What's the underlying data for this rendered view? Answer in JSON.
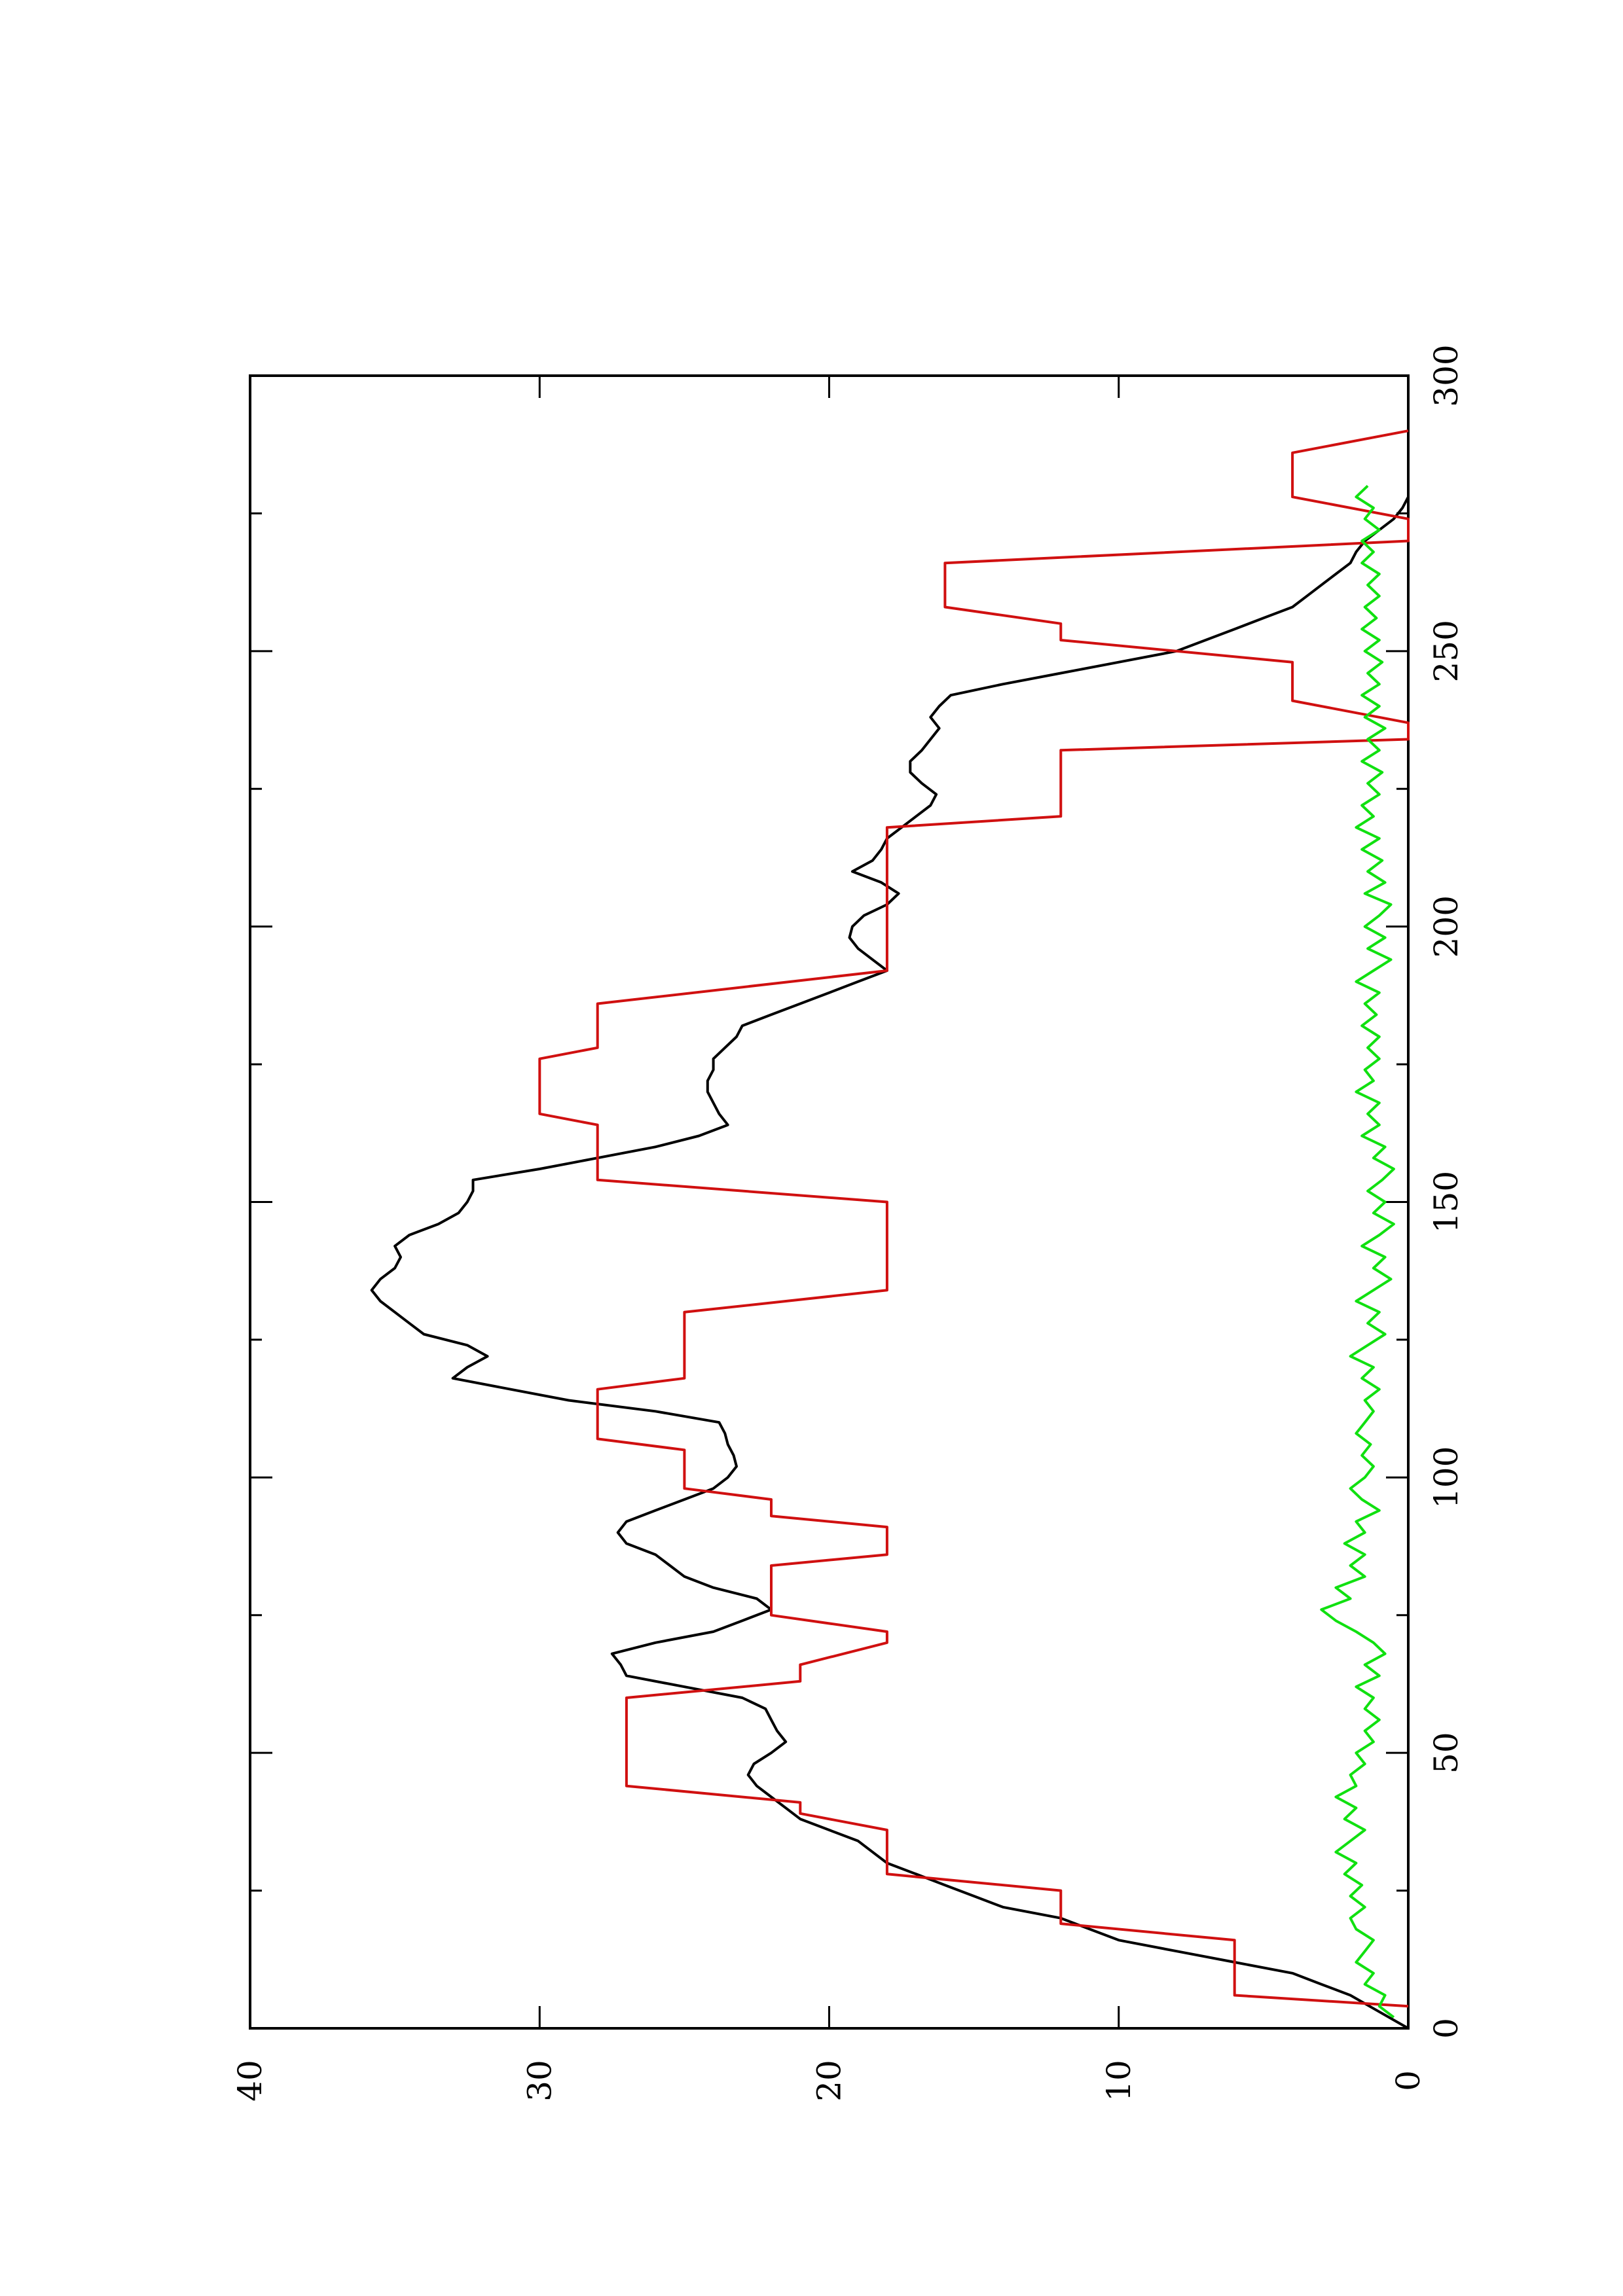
{
  "chart_data": {
    "type": "line",
    "orientation": "rotated-90-ccw",
    "title": "",
    "xlabel": "",
    "ylabel": "",
    "xlim": [
      0,
      300
    ],
    "ylim": [
      0,
      40
    ],
    "x_ticks_major": [
      0,
      50,
      100,
      150,
      200,
      250,
      300
    ],
    "x_ticks_minor": [
      25,
      75,
      125,
      175,
      225,
      275
    ],
    "y_ticks_major": [
      0,
      10,
      20,
      30,
      40
    ],
    "x_tick_labels": [
      "0",
      "50",
      "100",
      "150",
      "200",
      "250",
      "300"
    ],
    "y_tick_labels": [
      "0",
      "10",
      "20",
      "30",
      "40"
    ],
    "grid": false,
    "legend": "none",
    "series": [
      {
        "color": "#000000",
        "points": [
          [
            0,
            0
          ],
          [
            3,
            1
          ],
          [
            6,
            2
          ],
          [
            8,
            3
          ],
          [
            10,
            4
          ],
          [
            12,
            6
          ],
          [
            14,
            8
          ],
          [
            16,
            10
          ],
          [
            18,
            11
          ],
          [
            20,
            12
          ],
          [
            22,
            14
          ],
          [
            24,
            15
          ],
          [
            26,
            16
          ],
          [
            28,
            17
          ],
          [
            30,
            18
          ],
          [
            32,
            18.5
          ],
          [
            34,
            19
          ],
          [
            36,
            20
          ],
          [
            38,
            21
          ],
          [
            40,
            21.5
          ],
          [
            42,
            22
          ],
          [
            44,
            22.5
          ],
          [
            46,
            22.8
          ],
          [
            48,
            22.6
          ],
          [
            50,
            22
          ],
          [
            52,
            21.5
          ],
          [
            54,
            21.8
          ],
          [
            56,
            22
          ],
          [
            58,
            22.2
          ],
          [
            60,
            23
          ],
          [
            62,
            25
          ],
          [
            64,
            27
          ],
          [
            66,
            27.2
          ],
          [
            68,
            27.5
          ],
          [
            70,
            26
          ],
          [
            72,
            24
          ],
          [
            74,
            23
          ],
          [
            76,
            22
          ],
          [
            78,
            22.5
          ],
          [
            80,
            24
          ],
          [
            82,
            25
          ],
          [
            84,
            25.5
          ],
          [
            86,
            26
          ],
          [
            88,
            27
          ],
          [
            90,
            27.3
          ],
          [
            92,
            27
          ],
          [
            94,
            26
          ],
          [
            96,
            25
          ],
          [
            98,
            24
          ],
          [
            100,
            23.5
          ],
          [
            102,
            23.2
          ],
          [
            104,
            23.3
          ],
          [
            106,
            23.5
          ],
          [
            108,
            23.6
          ],
          [
            110,
            23.8
          ],
          [
            112,
            26
          ],
          [
            114,
            29
          ],
          [
            116,
            31
          ],
          [
            118,
            33
          ],
          [
            120,
            32.5
          ],
          [
            122,
            31.8
          ],
          [
            124,
            32.5
          ],
          [
            126,
            34
          ],
          [
            128,
            34.5
          ],
          [
            130,
            35
          ],
          [
            132,
            35.5
          ],
          [
            134,
            35.8
          ],
          [
            136,
            35.5
          ],
          [
            138,
            35
          ],
          [
            140,
            34.8
          ],
          [
            142,
            35
          ],
          [
            144,
            34.5
          ],
          [
            146,
            33.5
          ],
          [
            148,
            32.8
          ],
          [
            150,
            32.5
          ],
          [
            152,
            32.3
          ],
          [
            154,
            32.3
          ],
          [
            156,
            30
          ],
          [
            158,
            28
          ],
          [
            160,
            26
          ],
          [
            162,
            24.5
          ],
          [
            164,
            23.5
          ],
          [
            166,
            23.8
          ],
          [
            168,
            24
          ],
          [
            170,
            24.2
          ],
          [
            172,
            24.2
          ],
          [
            174,
            24
          ],
          [
            176,
            24
          ],
          [
            178,
            23.6
          ],
          [
            180,
            23.2
          ],
          [
            182,
            23
          ],
          [
            184,
            22
          ],
          [
            186,
            21
          ],
          [
            188,
            20
          ],
          [
            190,
            19
          ],
          [
            192,
            18
          ],
          [
            194,
            18.5
          ],
          [
            196,
            19
          ],
          [
            198,
            19.3
          ],
          [
            200,
            19.2
          ],
          [
            202,
            18.8
          ],
          [
            204,
            18
          ],
          [
            206,
            17.6
          ],
          [
            208,
            18.2
          ],
          [
            210,
            19.2
          ],
          [
            212,
            18.5
          ],
          [
            214,
            18.2
          ],
          [
            216,
            18
          ],
          [
            218,
            17.5
          ],
          [
            220,
            17
          ],
          [
            222,
            16.5
          ],
          [
            224,
            16.3
          ],
          [
            226,
            16.8
          ],
          [
            228,
            17.2
          ],
          [
            230,
            17.2
          ],
          [
            232,
            16.8
          ],
          [
            234,
            16.5
          ],
          [
            236,
            16.2
          ],
          [
            238,
            16.5
          ],
          [
            240,
            16.2
          ],
          [
            242,
            15.8
          ],
          [
            244,
            14
          ],
          [
            246,
            12
          ],
          [
            248,
            10
          ],
          [
            250,
            8
          ],
          [
            252,
            7
          ],
          [
            254,
            6
          ],
          [
            256,
            5
          ],
          [
            258,
            4
          ],
          [
            260,
            3.5
          ],
          [
            262,
            3
          ],
          [
            264,
            2.5
          ],
          [
            266,
            2
          ],
          [
            268,
            1.8
          ],
          [
            270,
            1.5
          ],
          [
            272,
            1
          ],
          [
            274,
            0.5
          ],
          [
            276,
            0.2
          ],
          [
            278,
            0
          ]
        ]
      },
      {
        "color": "#d01010",
        "points": [
          [
            4,
            0
          ],
          [
            6,
            6
          ],
          [
            16,
            6
          ],
          [
            19,
            12
          ],
          [
            25,
            12
          ],
          [
            28,
            18
          ],
          [
            36,
            18
          ],
          [
            39,
            21
          ],
          [
            41,
            21
          ],
          [
            44,
            27
          ],
          [
            60,
            27
          ],
          [
            63,
            21
          ],
          [
            66,
            21
          ],
          [
            70,
            18
          ],
          [
            72,
            18
          ],
          [
            75,
            22
          ],
          [
            84,
            22
          ],
          [
            86,
            18
          ],
          [
            91,
            18
          ],
          [
            93,
            22
          ],
          [
            96,
            22
          ],
          [
            98,
            25
          ],
          [
            105,
            25
          ],
          [
            107,
            28
          ],
          [
            116,
            28
          ],
          [
            118,
            25
          ],
          [
            130,
            25
          ],
          [
            134,
            18
          ],
          [
            150,
            18
          ],
          [
            154,
            28
          ],
          [
            164,
            28
          ],
          [
            166,
            30
          ],
          [
            176,
            30
          ],
          [
            178,
            28
          ],
          [
            186,
            28
          ],
          [
            192,
            18
          ],
          [
            218,
            18
          ],
          [
            220,
            12
          ],
          [
            232,
            12
          ],
          [
            234,
            0
          ],
          [
            237,
            0
          ],
          [
            241,
            4
          ],
          [
            248,
            4
          ],
          [
            252,
            12
          ],
          [
            255,
            12
          ],
          [
            258,
            16
          ],
          [
            266,
            16
          ],
          [
            270,
            0
          ],
          [
            274,
            0
          ],
          [
            278,
            4
          ],
          [
            286,
            4
          ],
          [
            290,
            0
          ]
        ]
      },
      {
        "color": "#10e010",
        "points": [
          [
            2,
            0.5
          ],
          [
            4,
            1
          ],
          [
            6,
            0.8
          ],
          [
            8,
            1.5
          ],
          [
            10,
            1.2
          ],
          [
            12,
            1.8
          ],
          [
            14,
            1.5
          ],
          [
            16,
            1.2
          ],
          [
            18,
            1.8
          ],
          [
            20,
            2
          ],
          [
            22,
            1.5
          ],
          [
            24,
            2
          ],
          [
            26,
            1.6
          ],
          [
            28,
            2.2
          ],
          [
            30,
            1.8
          ],
          [
            32,
            2.5
          ],
          [
            34,
            2
          ],
          [
            36,
            1.5
          ],
          [
            38,
            2.2
          ],
          [
            40,
            1.8
          ],
          [
            42,
            2.5
          ],
          [
            44,
            1.8
          ],
          [
            46,
            2
          ],
          [
            48,
            1.5
          ],
          [
            50,
            1.8
          ],
          [
            52,
            1.2
          ],
          [
            54,
            1.5
          ],
          [
            56,
            1
          ],
          [
            58,
            1.5
          ],
          [
            60,
            1.2
          ],
          [
            62,
            1.8
          ],
          [
            64,
            1
          ],
          [
            66,
            1.5
          ],
          [
            68,
            0.8
          ],
          [
            70,
            1.2
          ],
          [
            72,
            1.8
          ],
          [
            74,
            2.5
          ],
          [
            76,
            3
          ],
          [
            78,
            2
          ],
          [
            80,
            2.5
          ],
          [
            82,
            1.5
          ],
          [
            84,
            2
          ],
          [
            86,
            1.5
          ],
          [
            88,
            2.2
          ],
          [
            90,
            1.5
          ],
          [
            92,
            1.8
          ],
          [
            94,
            1
          ],
          [
            96,
            1.6
          ],
          [
            98,
            2
          ],
          [
            100,
            1.5
          ],
          [
            102,
            1.2
          ],
          [
            104,
            1.6
          ],
          [
            106,
            1.3
          ],
          [
            108,
            1.8
          ],
          [
            110,
            1.5
          ],
          [
            112,
            1.2
          ],
          [
            114,
            1.5
          ],
          [
            116,
            1
          ],
          [
            118,
            1.6
          ],
          [
            120,
            1.2
          ],
          [
            122,
            2
          ],
          [
            124,
            1.4
          ],
          [
            126,
            0.8
          ],
          [
            128,
            1.4
          ],
          [
            130,
            1
          ],
          [
            132,
            1.8
          ],
          [
            134,
            1.2
          ],
          [
            136,
            0.6
          ],
          [
            138,
            1.2
          ],
          [
            140,
            0.8
          ],
          [
            142,
            1.6
          ],
          [
            144,
            1
          ],
          [
            146,
            0.5
          ],
          [
            148,
            1.2
          ],
          [
            150,
            0.8
          ],
          [
            152,
            1.4
          ],
          [
            154,
            0.9
          ],
          [
            156,
            0.5
          ],
          [
            158,
            1.2
          ],
          [
            160,
            0.8
          ],
          [
            162,
            1.6
          ],
          [
            164,
            1
          ],
          [
            166,
            1.4
          ],
          [
            168,
            1
          ],
          [
            170,
            1.8
          ],
          [
            172,
            1.2
          ],
          [
            174,
            1.5
          ],
          [
            176,
            1
          ],
          [
            178,
            1.4
          ],
          [
            180,
            1
          ],
          [
            182,
            1.6
          ],
          [
            184,
            1.1
          ],
          [
            186,
            1.5
          ],
          [
            188,
            1
          ],
          [
            190,
            1.8
          ],
          [
            192,
            1.2
          ],
          [
            194,
            0.6
          ],
          [
            196,
            1.4
          ],
          [
            198,
            0.8
          ],
          [
            200,
            1.5
          ],
          [
            202,
            1
          ],
          [
            204,
            0.6
          ],
          [
            206,
            1.5
          ],
          [
            208,
            0.8
          ],
          [
            210,
            1.4
          ],
          [
            212,
            0.9
          ],
          [
            214,
            1.6
          ],
          [
            216,
            1
          ],
          [
            218,
            1.8
          ],
          [
            220,
            1.2
          ],
          [
            222,
            1.6
          ],
          [
            224,
            1
          ],
          [
            226,
            1.4
          ],
          [
            228,
            0.9
          ],
          [
            230,
            1.6
          ],
          [
            232,
            1
          ],
          [
            234,
            1.4
          ],
          [
            236,
            0.8
          ],
          [
            238,
            1.5
          ],
          [
            240,
            1
          ],
          [
            242,
            1.6
          ],
          [
            244,
            1
          ],
          [
            246,
            1.4
          ],
          [
            248,
            0.9
          ],
          [
            250,
            1.5
          ],
          [
            252,
            1
          ],
          [
            254,
            1.6
          ],
          [
            256,
            1.1
          ],
          [
            258,
            1.5
          ],
          [
            260,
            1
          ],
          [
            262,
            1.4
          ],
          [
            264,
            1
          ],
          [
            266,
            1.6
          ],
          [
            268,
            1.2
          ],
          [
            270,
            1.6
          ],
          [
            272,
            1
          ],
          [
            274,
            1.5
          ],
          [
            276,
            1.2
          ],
          [
            278,
            1.8
          ],
          [
            280,
            1.4
          ]
        ]
      }
    ]
  }
}
